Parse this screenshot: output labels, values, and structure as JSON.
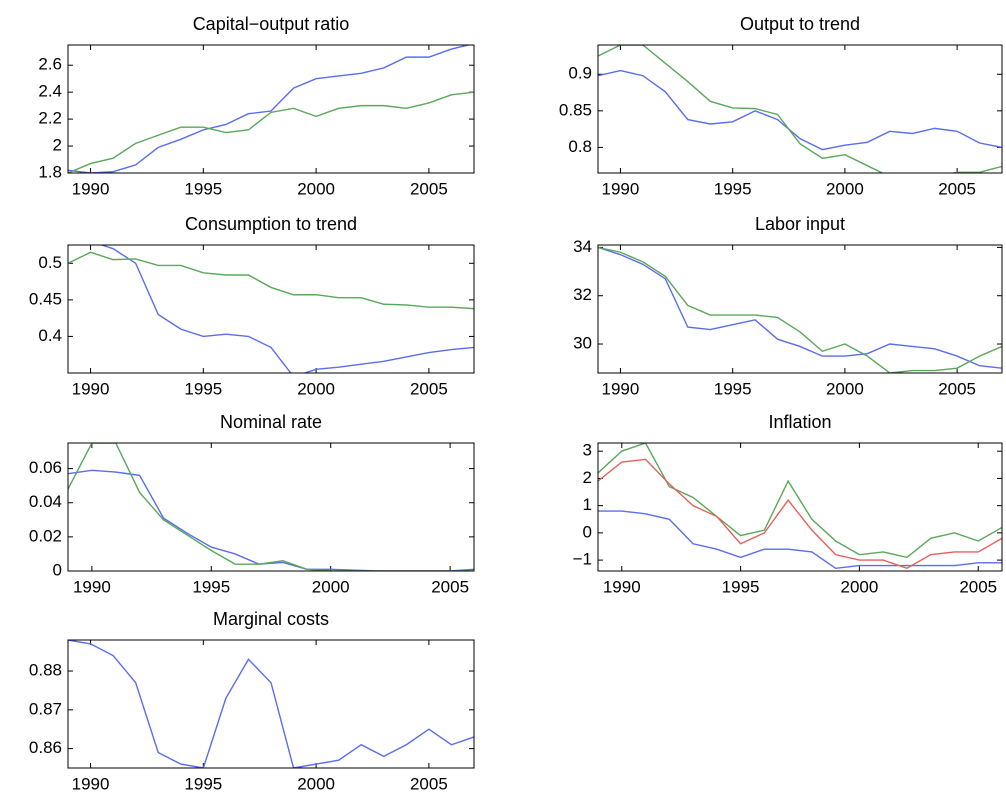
{
  "chart_data": [
    {
      "type": "line",
      "title": "Capital−output ratio",
      "x": [
        1989,
        1990,
        1991,
        1992,
        1993,
        1994,
        1995,
        1996,
        1997,
        1998,
        1999,
        2000,
        2001,
        2002,
        2003,
        2004,
        2005,
        2006,
        2007
      ],
      "xlim": [
        1989,
        2007
      ],
      "xticks": [
        1990,
        1995,
        2000,
        2005
      ],
      "ylim": [
        1.8,
        2.75
      ],
      "yticks": [
        1.8,
        2,
        2.2,
        2.4,
        2.6
      ],
      "series": [
        {
          "color": "#5a6cf0",
          "values": [
            1.82,
            1.8,
            1.81,
            1.86,
            1.99,
            2.05,
            2.12,
            2.16,
            2.24,
            2.26,
            2.43,
            2.5,
            2.52,
            2.54,
            2.58,
            2.66,
            2.66,
            2.72,
            2.76
          ]
        },
        {
          "color": "#5aa85a",
          "values": [
            1.8,
            1.87,
            1.91,
            2.02,
            2.08,
            2.14,
            2.14,
            2.1,
            2.12,
            2.25,
            2.28,
            2.22,
            2.28,
            2.3,
            2.3,
            2.28,
            2.32,
            2.38,
            2.4
          ]
        }
      ]
    },
    {
      "type": "line",
      "title": "Output to trend",
      "x": [
        1989,
        1990,
        1991,
        1992,
        1993,
        1994,
        1995,
        1996,
        1997,
        1998,
        1999,
        2000,
        2001,
        2002,
        2003,
        2004,
        2005,
        2006,
        2007
      ],
      "xlim": [
        1989,
        2007
      ],
      "xticks": [
        1990,
        1995,
        2000,
        2005
      ],
      "ylim": [
        0.765,
        0.94
      ],
      "yticks": [
        0.8,
        0.85,
        0.9
      ],
      "series": [
        {
          "color": "#5a6cf0",
          "values": [
            0.898,
            0.905,
            0.898,
            0.876,
            0.838,
            0.832,
            0.835,
            0.85,
            0.838,
            0.812,
            0.797,
            0.803,
            0.807,
            0.822,
            0.819,
            0.826,
            0.822,
            0.806,
            0.8
          ]
        },
        {
          "color": "#5aa85a",
          "values": [
            0.925,
            0.94,
            0.94,
            0.915,
            0.89,
            0.863,
            0.854,
            0.853,
            0.845,
            0.805,
            0.785,
            0.79,
            0.775,
            0.76,
            0.753,
            0.76,
            0.766,
            0.766,
            0.774
          ]
        }
      ]
    },
    {
      "type": "line",
      "title": "Consumption to trend",
      "x": [
        1989,
        1990,
        1991,
        1992,
        1993,
        1994,
        1995,
        1996,
        1997,
        1998,
        1999,
        2000,
        2001,
        2002,
        2003,
        2004,
        2005,
        2006,
        2007
      ],
      "xlim": [
        1989,
        2007
      ],
      "xticks": [
        1990,
        1995,
        2000,
        2005
      ],
      "ylim": [
        0.35,
        0.525
      ],
      "yticks": [
        0.4,
        0.45,
        0.5
      ],
      "series": [
        {
          "color": "#5a6cf0",
          "values": [
            0.525,
            0.53,
            0.52,
            0.5,
            0.43,
            0.41,
            0.4,
            0.403,
            0.4,
            0.385,
            0.345,
            0.355,
            0.358,
            0.362,
            0.366,
            0.372,
            0.378,
            0.382,
            0.385
          ]
        },
        {
          "color": "#5aa85a",
          "values": [
            0.5,
            0.515,
            0.505,
            0.506,
            0.497,
            0.497,
            0.487,
            0.484,
            0.484,
            0.467,
            0.457,
            0.457,
            0.453,
            0.453,
            0.444,
            0.443,
            0.44,
            0.44,
            0.438
          ]
        }
      ]
    },
    {
      "type": "line",
      "title": "Labor input",
      "x": [
        1989,
        1990,
        1991,
        1992,
        1993,
        1994,
        1995,
        1996,
        1997,
        1998,
        1999,
        2000,
        2001,
        2002,
        2003,
        2004,
        2005,
        2006,
        2007
      ],
      "xlim": [
        1989,
        2007
      ],
      "xticks": [
        1990,
        1995,
        2000,
        2005
      ],
      "ylim": [
        28.8,
        34.1
      ],
      "yticks": [
        30,
        32,
        34
      ],
      "series": [
        {
          "color": "#5a6cf0",
          "values": [
            34,
            33.7,
            33.3,
            32.7,
            30.7,
            30.6,
            30.8,
            31,
            30.2,
            29.9,
            29.5,
            29.5,
            29.6,
            30,
            29.9,
            29.8,
            29.5,
            29.1,
            29
          ]
        },
        {
          "color": "#5aa85a",
          "values": [
            34,
            33.8,
            33.4,
            32.8,
            31.6,
            31.2,
            31.2,
            31.2,
            31.1,
            30.5,
            29.7,
            30,
            29.5,
            28.8,
            28.9,
            28.9,
            29,
            29.5,
            29.9
          ]
        }
      ]
    },
    {
      "type": "line",
      "title": "Nominal rate",
      "x": [
        1989,
        1990,
        1991,
        1992,
        1993,
        1994,
        1995,
        1996,
        1997,
        1998,
        1999,
        2000,
        2001,
        2002,
        2003,
        2004,
        2005,
        2006
      ],
      "xlim": [
        1989,
        2006
      ],
      "xticks": [
        1990,
        1995,
        2000,
        2005
      ],
      "ylim": [
        0,
        0.075
      ],
      "yticks": [
        0,
        0.02,
        0.04,
        0.06
      ],
      "series": [
        {
          "color": "#5a6cf0",
          "values": [
            0.057,
            0.059,
            0.058,
            0.056,
            0.031,
            0.022,
            0.014,
            0.01,
            0.004,
            0.005,
            0.001,
            0.001,
            0.0005,
            0,
            0,
            0,
            0,
            0.001
          ]
        },
        {
          "color": "#5aa85a",
          "values": [
            0.048,
            0.075,
            0.075,
            0.046,
            0.03,
            0.021,
            0.012,
            0.004,
            0.004,
            0.006,
            0.001,
            0,
            0,
            0,
            0,
            0,
            0,
            0
          ]
        }
      ]
    },
    {
      "type": "line",
      "title": "Inflation",
      "x": [
        1989,
        1990,
        1991,
        1992,
        1993,
        1994,
        1995,
        1996,
        1997,
        1998,
        1999,
        2000,
        2001,
        2002,
        2003,
        2004,
        2005,
        2006
      ],
      "xlim": [
        1989,
        2006
      ],
      "xticks": [
        1990,
        1995,
        2000,
        2005
      ],
      "ylim": [
        -1.4,
        3.3
      ],
      "yticks": [
        {
          "value": -1,
          "label": "−1"
        },
        0,
        1,
        2,
        3
      ],
      "series": [
        {
          "color": "#5a6cf0",
          "values": [
            0.8,
            0.8,
            0.7,
            0.5,
            -0.4,
            -0.6,
            -0.9,
            -0.6,
            -0.6,
            -0.7,
            -1.3,
            -1.2,
            -1.2,
            -1.2,
            -1.2,
            -1.2,
            -1.1,
            -1.1
          ]
        },
        {
          "color": "#5aa85a",
          "values": [
            2.2,
            3,
            3.3,
            1.7,
            1.3,
            0.6,
            -0.1,
            0.1,
            1.9,
            0.5,
            -0.3,
            -0.8,
            -0.7,
            -0.9,
            -0.2,
            0,
            -0.3,
            0.2
          ]
        },
        {
          "color": "#e8605a",
          "values": [
            1.9,
            2.6,
            2.7,
            1.8,
            1,
            0.6,
            -0.4,
            0,
            1.2,
            0.1,
            -0.8,
            -1,
            -1,
            -1.3,
            -0.8,
            -0.7,
            -0.7,
            -0.2
          ]
        }
      ]
    },
    {
      "type": "line",
      "title": "Marginal costs",
      "x": [
        1989,
        1990,
        1991,
        1992,
        1993,
        1994,
        1995,
        1996,
        1997,
        1998,
        1999,
        2000,
        2001,
        2002,
        2003,
        2004,
        2005,
        2006,
        2007
      ],
      "xlim": [
        1989,
        2007
      ],
      "xticks": [
        1990,
        1995,
        2000,
        2005
      ],
      "ylim": [
        0.855,
        0.888
      ],
      "yticks": [
        0.86,
        0.87,
        0.88
      ],
      "series": [
        {
          "color": "#5a6cf0",
          "values": [
            0.888,
            0.887,
            0.884,
            0.877,
            0.859,
            0.856,
            0.855,
            0.873,
            0.883,
            0.877,
            0.855,
            0.856,
            0.857,
            0.861,
            0.858,
            0.861,
            0.865,
            0.861,
            0.863
          ]
        }
      ]
    }
  ]
}
